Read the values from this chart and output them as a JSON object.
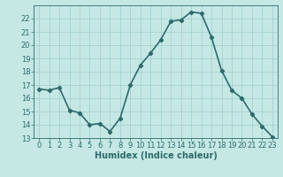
{
  "x": [
    0,
    1,
    2,
    3,
    4,
    5,
    6,
    7,
    8,
    9,
    10,
    11,
    12,
    13,
    14,
    15,
    16,
    17,
    18,
    19,
    20,
    21,
    22,
    23
  ],
  "y": [
    16.7,
    16.6,
    16.8,
    15.1,
    14.9,
    14.0,
    14.1,
    13.5,
    14.5,
    17.0,
    18.5,
    19.4,
    20.4,
    21.8,
    21.9,
    22.5,
    22.4,
    20.6,
    18.1,
    16.6,
    16.0,
    14.8,
    13.9,
    13.1
  ],
  "xlabel": "Humidex (Indice chaleur)",
  "xlim": [
    -0.5,
    23.5
  ],
  "ylim": [
    13,
    23
  ],
  "yticks": [
    13,
    14,
    15,
    16,
    17,
    18,
    19,
    20,
    21,
    22
  ],
  "xticks": [
    0,
    1,
    2,
    3,
    4,
    5,
    6,
    7,
    8,
    9,
    10,
    11,
    12,
    13,
    14,
    15,
    16,
    17,
    18,
    19,
    20,
    21,
    22,
    23
  ],
  "line_color": "#2d6b6b",
  "marker": "D",
  "marker_size": 2.2,
  "bg_color": "#c5e8e5",
  "grid_color": "#9dcece",
  "xlabel_color": "#2d6b6b",
  "tick_color": "#2d6b6b",
  "line_width": 1.2,
  "xlabel_fontsize": 7,
  "tick_fontsize": 6
}
